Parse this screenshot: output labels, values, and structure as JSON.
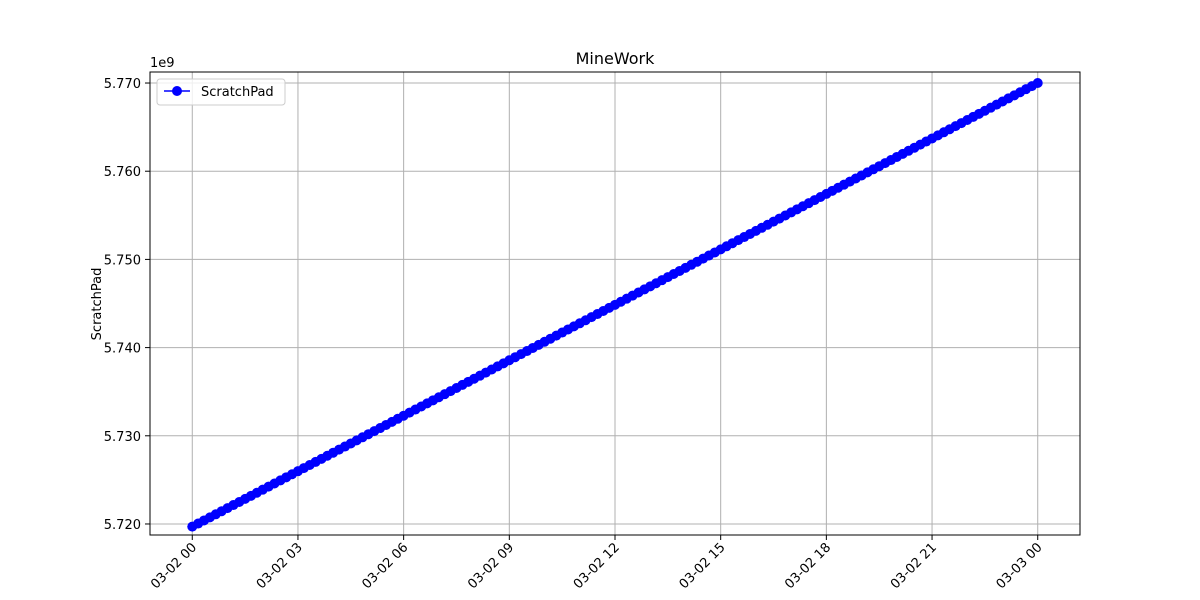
{
  "chart_data": {
    "type": "line",
    "title": "MineWork",
    "xlabel": "",
    "ylabel": "ScratchPad",
    "y_offset_label": "1e9",
    "x_start": "2024-03-02 00:00",
    "x_end": "2024-03-03 00:00",
    "x_step_minutes": 10,
    "x_ticks": [
      {
        "x": "2024-03-02 00:00",
        "label": "03-02 00"
      },
      {
        "x": "2024-03-02 03:00",
        "label": "03-02 03"
      },
      {
        "x": "2024-03-02 06:00",
        "label": "03-02 06"
      },
      {
        "x": "2024-03-02 09:00",
        "label": "03-02 09"
      },
      {
        "x": "2024-03-02 12:00",
        "label": "03-02 12"
      },
      {
        "x": "2024-03-02 15:00",
        "label": "03-02 15"
      },
      {
        "x": "2024-03-02 18:00",
        "label": "03-02 18"
      },
      {
        "x": "2024-03-02 21:00",
        "label": "03-02 21"
      },
      {
        "x": "2024-03-03 00:00",
        "label": "03-03 00"
      }
    ],
    "y_ticks": [
      {
        "value": 5720000000,
        "label": "5.720"
      },
      {
        "value": 5730000000,
        "label": "5.730"
      },
      {
        "value": 5740000000,
        "label": "5.740"
      },
      {
        "value": 5750000000,
        "label": "5.750"
      },
      {
        "value": 5760000000,
        "label": "5.760"
      },
      {
        "value": 5770000000,
        "label": "5.770"
      }
    ],
    "ylim": [
      5718750000,
      5771250000
    ],
    "xlim": [
      "2024-03-01 22:48",
      "2024-03-03 01:12"
    ],
    "grid": true,
    "legend_position": "upper-left",
    "series": [
      {
        "name": "ScratchPad",
        "color": "#0000ff",
        "marker": "circle",
        "y_start": 5719700000,
        "y_end": 5770000000
      }
    ]
  }
}
